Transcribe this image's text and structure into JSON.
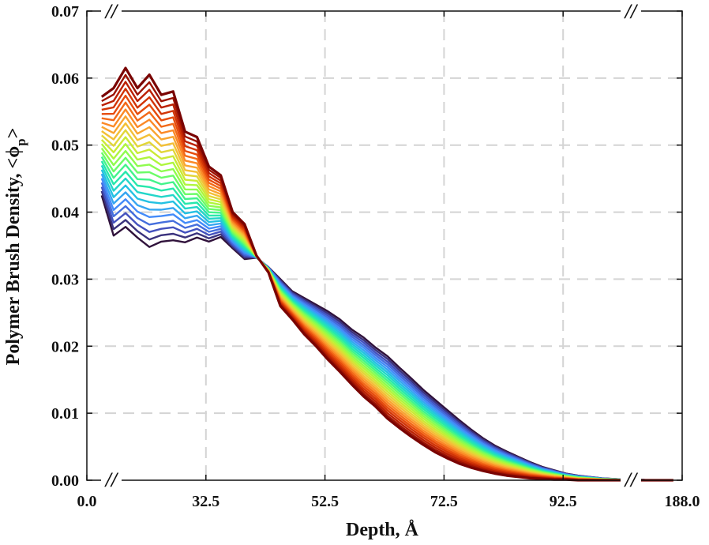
{
  "chart_data": {
    "type": "line",
    "title": "",
    "xlabel": "Depth, Å",
    "ylabel": "Polymer Brush Density, <ϕp>",
    "ylabel_main": "Polymer Brush Density, <ϕ",
    "ylabel_sub": "p",
    "ylabel_close": ">",
    "grid": true,
    "xlim": [
      12.5,
      112.5
    ],
    "ylim": [
      0,
      0.07
    ],
    "x_tick_labels": [
      "0.0",
      "32.5",
      "52.5",
      "72.5",
      "92.5",
      "188.0"
    ],
    "y_tick_labels": [
      "0.00",
      "0.01",
      "0.02",
      "0.03",
      "0.04",
      "0.05",
      "0.06",
      "0.07"
    ],
    "y_ticks": [
      0,
      0.01,
      0.02,
      0.03,
      0.04,
      0.05,
      0.06,
      0.07
    ],
    "axis_break_mark": "//",
    "series_count": 24,
    "colormap": [
      "#30123b",
      "#4454c4",
      "#4490fe",
      "#1fc8de",
      "#29efa2",
      "#7dff56",
      "#c1f334",
      "#f1ca3a",
      "#fe922a",
      "#ea4f0d",
      "#be2102",
      "#7a0403"
    ],
    "x": [
      15,
      17,
      19,
      21,
      23,
      25,
      27,
      29,
      31,
      33,
      35,
      37,
      39,
      41,
      43,
      45,
      47,
      49,
      51,
      53,
      55,
      57,
      59,
      61,
      63,
      65,
      67,
      69,
      71,
      73,
      75,
      77,
      79,
      81,
      83,
      85,
      87,
      89,
      91,
      93,
      95,
      97,
      99,
      101,
      103,
      105,
      107,
      109,
      111
    ],
    "series_first": [
      0.0425,
      0.0365,
      0.0378,
      0.0362,
      0.0348,
      0.0356,
      0.0358,
      0.0355,
      0.0362,
      0.0356,
      0.0363,
      0.0346,
      0.033,
      0.0332,
      0.0318,
      0.03,
      0.0282,
      0.0272,
      0.0262,
      0.0252,
      0.024,
      0.0225,
      0.0213,
      0.0198,
      0.0185,
      0.0168,
      0.0152,
      0.0135,
      0.012,
      0.0105,
      0.009,
      0.0076,
      0.0063,
      0.0052,
      0.0043,
      0.0035,
      0.0027,
      0.002,
      0.0015,
      0.001,
      0.0007,
      0.0005,
      0.0003,
      0.0002,
      0.0001,
      0.0001,
      0.0,
      0.0,
      0.0
    ],
    "series_last": [
      0.0572,
      0.0585,
      0.0615,
      0.0585,
      0.0605,
      0.0575,
      0.058,
      0.052,
      0.0512,
      0.0468,
      0.0455,
      0.04,
      0.0382,
      0.0335,
      0.031,
      0.026,
      0.024,
      0.0218,
      0.02,
      0.018,
      0.0162,
      0.0143,
      0.0125,
      0.011,
      0.0092,
      0.0078,
      0.0065,
      0.0053,
      0.0042,
      0.0033,
      0.0025,
      0.0019,
      0.0014,
      0.001,
      0.0007,
      0.0005,
      0.0003,
      0.0002,
      0.0001,
      0.0001,
      0.0,
      0.0,
      0.0,
      0.0,
      0.0,
      0.0,
      0.0,
      0.0,
      0.0
    ]
  }
}
